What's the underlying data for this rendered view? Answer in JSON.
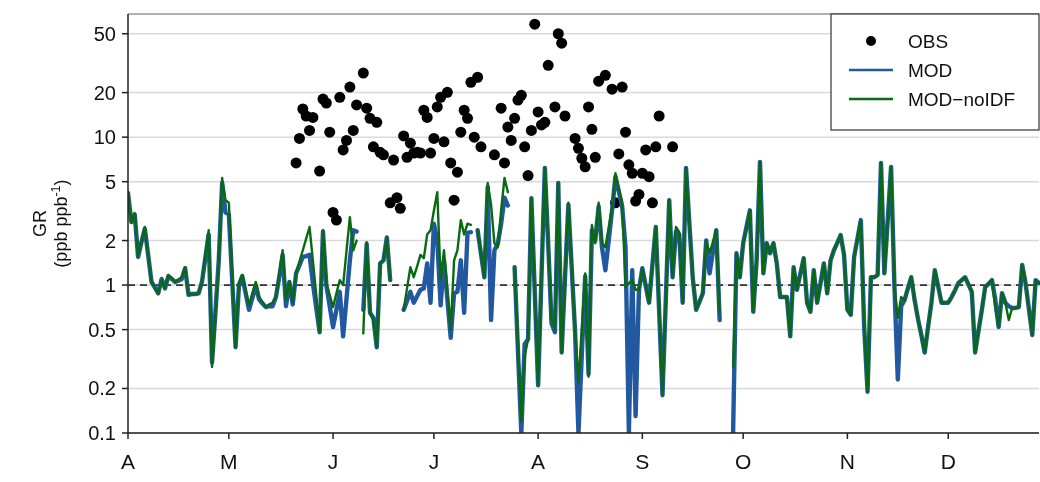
{
  "chart_data": {
    "type": "line",
    "ylabel": "GR\n(ppb ppb$^{-1}$)",
    "log": true,
    "grid": "y",
    "legend": "top right",
    "categories": [
      "A",
      null,
      null,
      null,
      null,
      null,
      null,
      null,
      null,
      null,
      null,
      null,
      null,
      null,
      null,
      null,
      null,
      null,
      null,
      null,
      null,
      null,
      null,
      null,
      null,
      null,
      null,
      null,
      null,
      null,
      "M",
      null,
      null,
      null,
      null,
      null,
      null,
      null,
      null,
      null,
      null,
      null,
      null,
      null,
      null,
      null,
      null,
      null,
      null,
      null,
      null,
      null,
      null,
      null,
      null,
      null,
      null,
      null,
      null,
      null,
      null,
      "J",
      null,
      null,
      null,
      null,
      null,
      null,
      null,
      null,
      null,
      null,
      null,
      null,
      null,
      null,
      null,
      null,
      null,
      null,
      null,
      null,
      null,
      null,
      null,
      null,
      null,
      null,
      null,
      null,
      null,
      "J",
      null,
      null,
      null,
      null,
      null,
      null,
      null,
      null,
      null,
      null,
      null,
      null,
      null,
      null,
      null,
      null,
      null,
      null,
      null,
      null,
      null,
      null,
      null,
      null,
      null,
      null,
      null,
      null,
      null,
      null,
      "A",
      null,
      null,
      null,
      null,
      null,
      null,
      null,
      null,
      null,
      null,
      null,
      null,
      null,
      null,
      null,
      null,
      null,
      null,
      null,
      null,
      null,
      null,
      null,
      null,
      null,
      null,
      null,
      null,
      null,
      null,
      "S",
      null,
      null,
      null,
      null,
      null,
      null,
      null,
      null,
      null,
      null,
      null,
      null,
      null,
      null,
      null,
      null,
      null,
      null,
      null,
      null,
      null,
      null,
      null,
      null,
      null,
      null,
      null,
      null,
      null,
      "O",
      null,
      null,
      null,
      null,
      null,
      null,
      null,
      null,
      null,
      null,
      null,
      null,
      null,
      null,
      null,
      null,
      null,
      null,
      null,
      null,
      null,
      null,
      null,
      null,
      null,
      null,
      null,
      null,
      null,
      null,
      "N",
      null,
      null,
      null,
      null,
      null,
      null,
      null,
      null,
      null,
      null,
      null,
      null,
      null,
      null,
      null,
      null,
      null,
      null,
      null,
      null,
      null,
      null,
      null,
      null,
      null,
      null,
      null,
      null,
      null,
      "D",
      null,
      null,
      null,
      null,
      null,
      null,
      null,
      null,
      null,
      null,
      null,
      null,
      null,
      null,
      null,
      null,
      null,
      null,
      null,
      null,
      null,
      null,
      null,
      null,
      null,
      null,
      null
    ],
    "ylim": [
      0.1,
      68
    ],
    "yticks": [
      0.1,
      0.2,
      0.5,
      1,
      2,
      5,
      10,
      20,
      50
    ],
    "ref_lines": [
      {
        "axis": "y",
        "value": 1,
        "color": "#333333",
        "line_style": "dashed"
      }
    ],
    "series": [
      {
        "name": "OBS",
        "type": "scatter",
        "marker": "circle",
        "color": "#000000",
        "values": [
          null,
          null,
          null,
          null,
          null,
          null,
          null,
          null,
          null,
          null,
          null,
          null,
          null,
          null,
          null,
          null,
          null,
          null,
          null,
          null,
          null,
          null,
          null,
          null,
          null,
          null,
          null,
          null,
          null,
          null,
          null,
          null,
          null,
          null,
          null,
          null,
          null,
          null,
          null,
          null,
          null,
          null,
          null,
          null,
          null,
          null,
          null,
          null,
          null,
          null,
          6.7,
          9.8,
          15.5,
          13.9,
          11.1,
          13.6,
          null,
          5.9,
          18.1,
          17.0,
          10.8,
          3.1,
          2.75,
          18.6,
          8.2,
          9.5,
          21.8,
          11.1,
          16.5,
          null,
          27.1,
          15.7,
          13.4,
          8.6,
          12.6,
          7.9,
          7.6,
          null,
          3.6,
          7.0,
          3.9,
          3.3,
          10.2,
          7.3,
          9.1,
          7.8,
          7.9,
          7.8,
          15.2,
          13.6,
          7.8,
          9.8,
          16.0,
          18.6,
          9.3,
          20.1,
          6.7,
          3.75,
          5.8,
          10.8,
          15.2,
          13.4,
          23.5,
          10.0,
          25.4,
          8.6,
          null,
          null,
          null,
          7.6,
          null,
          15.7,
          6.7,
          11.7,
          9.5,
          13.4,
          17.8,
          19.2,
          8.6,
          5.5,
          11.1,
          58,
          14.8,
          12.1,
          12.6,
          30.6,
          null,
          16.0,
          50,
          43.2,
          13.9,
          null,
          null,
          9.8,
          8.4,
          7.2,
          6.3,
          16.0,
          11.3,
          7.3,
          23.9,
          null,
          26.2,
          null,
          21.1,
          3.6,
          7.7,
          21.8,
          10.8,
          6.5,
          5.7,
          3.7,
          4.1,
          5.7,
          8.2,
          5.4,
          3.6,
          8.6,
          13.9,
          null,
          null,
          null,
          8.6,
          null,
          null,
          null,
          null,
          null,
          null,
          null,
          null,
          null,
          null,
          null,
          null,
          null,
          null,
          null,
          null,
          null,
          null,
          null,
          null,
          null,
          null,
          null,
          null,
          null,
          null,
          null,
          null,
          null,
          null,
          null,
          null,
          null,
          null,
          null,
          null,
          null,
          null,
          null,
          null,
          null,
          null,
          null,
          null,
          null,
          null,
          null,
          null,
          null,
          null,
          null,
          null,
          null,
          null,
          null,
          null,
          null,
          null,
          null,
          null,
          null,
          null,
          null,
          null,
          null,
          null,
          null,
          null,
          null,
          null,
          null,
          null,
          null,
          null,
          null,
          null,
          null,
          null,
          null,
          null,
          null,
          null,
          null,
          null,
          null,
          null,
          null,
          null,
          null,
          null,
          null,
          null,
          null,
          null,
          null,
          null,
          null,
          null,
          null,
          null,
          null,
          null,
          null,
          null,
          null,
          null,
          null,
          null,
          null
        ]
      },
      {
        "name": "MOD",
        "color": "#22589f",
        "values": [
          4.2,
          2.67,
          3.0,
          1.55,
          1.95,
          2.4,
          1.59,
          1.05,
          0.96,
          0.88,
          1.1,
          0.95,
          1.15,
          1.1,
          1.05,
          1.07,
          1.1,
          1.3,
          0.86,
          0.87,
          0.87,
          0.88,
          1.05,
          1.52,
          2.2,
          0.3,
          0.65,
          1.47,
          4.9,
          3.1,
          3.0,
          1.07,
          0.38,
          1.0,
          1.15,
          0.88,
          0.68,
          0.82,
          1.0,
          0.8,
          0.75,
          0.71,
          0.72,
          0.72,
          0.83,
          1.13,
          1.6,
          0.72,
          1.05,
          0.74,
          1.2,
          1.36,
          1.55,
          1.57,
          1.6,
          1.03,
          0.7,
          0.48,
          2.3,
          1.0,
          0.72,
          0.52,
          0.68,
          0.9,
          0.45,
          0.81,
          1.47,
          2.35,
          2.3,
          null,
          0.68,
          1.9,
          0.65,
          0.6,
          0.38,
          1.4,
          1.47,
          2.1,
          1.08,
          null,
          null,
          null,
          0.68,
          0.78,
          0.9,
          0.76,
          0.84,
          0.93,
          0.95,
          1.4,
          0.76,
          2.6,
          2.0,
          0.73,
          1.47,
          0.8,
          0.44,
          0.88,
          0.9,
          1.47,
          0.65,
          2.25,
          2.28,
          null,
          2.35,
          1.63,
          1.13,
          4.6,
          0.58,
          1.72,
          1.9,
          2.6,
          3.9,
          3.45,
          null,
          1.32,
          0.36,
          0.1,
          0.4,
          0.43,
          3.87,
          0.9,
          0.21,
          1.14,
          6.2,
          1.9,
          0.55,
          0.48,
          4.9,
          0.35,
          1.12,
          3.5,
          1.3,
          0.48,
          0.1,
          0.34,
          1.15,
          0.25,
          2.35,
          2.0,
          3.4,
          1.8,
          1.26,
          2.0,
          3.2,
          5.4,
          4.3,
          3.4,
          1.8,
          0.1,
          1.26,
          0.13,
          0.93,
          1.3,
          0.99,
          0.76,
          1.37,
          2.47,
          0.67,
          0.18,
          0.82,
          3.75,
          1.13,
          2.3,
          2.2,
          0.76,
          6.2,
          2.6,
          1.12,
          0.68,
          0.77,
          0.88,
          2.0,
          1.2,
          1.68,
          2.35,
          0.58,
          null,
          null,
          null,
          0.1,
          1.64,
          1.13,
          1.92,
          2.48,
          3.2,
          0.66,
          1.47,
          6.8,
          1.2,
          1.92,
          1.64,
          1.92,
          1.4,
          0.83,
          0.83,
          0.83,
          0.45,
          1.32,
          0.93,
          1.19,
          1.52,
          0.76,
          0.66,
          1.26,
          0.76,
          1.03,
          1.4,
          0.88,
          1.47,
          1.72,
          1.93,
          2.18,
          1.6,
          0.68,
          0.63,
          1.55,
          2.06,
          2.75,
          0.52,
          0.19,
          1.13,
          1.13,
          1.17,
          6.7,
          1.2,
          2.75,
          6.3,
          0.97,
          0.23,
          0.72,
          0.79,
          0.95,
          1.13,
          0.79,
          0.59,
          0.46,
          0.35,
          0.52,
          0.76,
          1.26,
          0.98,
          0.76,
          0.76,
          0.76,
          0.83,
          0.92,
          1.03,
          1.08,
          1.13,
          1.01,
          0.9,
          0.35,
          0.49,
          0.68,
          0.97,
          1.02,
          1.08,
          0.8,
          0.52,
          0.88,
          0.76,
          0.72,
          0.7,
          0.7,
          0.71,
          1.37,
          1.03,
          0.69,
          0.46,
          1.08,
          1.03
        ]
      },
      {
        "name": "MOD−noIDF",
        "color": "#0a6a12",
        "values": [
          4.25,
          2.67,
          3.07,
          1.55,
          1.95,
          2.47,
          1.6,
          1.05,
          0.96,
          0.88,
          1.08,
          0.95,
          1.17,
          1.11,
          1.05,
          1.09,
          1.13,
          1.32,
          0.86,
          0.87,
          0.87,
          0.88,
          1.05,
          1.57,
          2.35,
          0.28,
          0.62,
          1.4,
          5.3,
          3.75,
          3.6,
          1.17,
          0.38,
          1.03,
          1.17,
          0.92,
          0.73,
          0.88,
          1.05,
          0.83,
          0.77,
          0.71,
          0.74,
          0.76,
          0.83,
          1.19,
          1.72,
          0.79,
          1.05,
          0.76,
          1.2,
          1.44,
          1.72,
          2.06,
          2.47,
          1.46,
          0.86,
          0.48,
          2.35,
          1.03,
          0.86,
          0.71,
          0.88,
          1.08,
          1.0,
          1.7,
          2.88,
          1.72,
          2.0,
          null,
          0.47,
          1.95,
          0.65,
          0.58,
          0.38,
          1.4,
          1.47,
          2.1,
          1.08,
          null,
          null,
          null,
          0.68,
          0.95,
          1.32,
          1.13,
          1.34,
          1.6,
          1.52,
          2.2,
          2.35,
          3.2,
          4.25,
          1.08,
          1.72,
          0.93,
          0.5,
          1.47,
          1.72,
          2.75,
          2.2,
          2.6,
          2.55,
          null,
          2.35,
          1.63,
          1.13,
          4.9,
          3.5,
          1.92,
          1.8,
          3.2,
          5.3,
          4.25,
          null,
          1.32,
          0.4,
          0.12,
          0.33,
          0.43,
          3.87,
          0.9,
          0.21,
          1.14,
          6.2,
          1.9,
          0.58,
          0.5,
          4.9,
          0.35,
          1.12,
          3.6,
          1.34,
          0.5,
          0.22,
          0.51,
          1.2,
          0.24,
          2.55,
          1.92,
          3.6,
          1.92,
          1.8,
          2.46,
          3.36,
          5.7,
          4.5,
          3.6,
          0.97,
          1.03,
          1.08,
          0.93,
          0.93,
          1.3,
          0.99,
          0.76,
          1.37,
          2.47,
          0.67,
          0.18,
          0.82,
          3.75,
          1.13,
          2.47,
          2.28,
          0.76,
          6.2,
          2.6,
          1.12,
          0.68,
          0.77,
          0.88,
          2.0,
          1.64,
          1.96,
          2.35,
          0.65,
          null,
          null,
          null,
          0.28,
          1.64,
          1.13,
          1.92,
          2.48,
          3.2,
          0.66,
          1.47,
          6.8,
          1.2,
          1.92,
          1.64,
          1.92,
          1.4,
          0.83,
          0.83,
          0.83,
          0.45,
          1.32,
          0.93,
          1.19,
          1.52,
          0.76,
          0.66,
          1.26,
          0.76,
          1.03,
          1.4,
          0.88,
          1.47,
          1.72,
          1.93,
          2.18,
          1.6,
          0.68,
          0.63,
          1.55,
          2.06,
          2.75,
          0.52,
          0.19,
          1.13,
          1.13,
          1.17,
          6.7,
          1.2,
          2.75,
          6.3,
          0.97,
          0.6,
          0.83,
          0.79,
          0.95,
          1.13,
          0.79,
          0.59,
          0.46,
          0.35,
          0.52,
          0.76,
          1.26,
          0.98,
          0.76,
          0.76,
          0.76,
          0.83,
          0.92,
          1.03,
          1.08,
          1.13,
          1.01,
          0.9,
          0.35,
          0.49,
          0.68,
          0.97,
          1.02,
          1.08,
          0.7,
          0.52,
          0.88,
          0.76,
          0.58,
          0.7,
          0.7,
          0.71,
          1.37,
          1.03,
          0.69,
          0.46,
          1.08,
          1.03
        ]
      }
    ]
  }
}
